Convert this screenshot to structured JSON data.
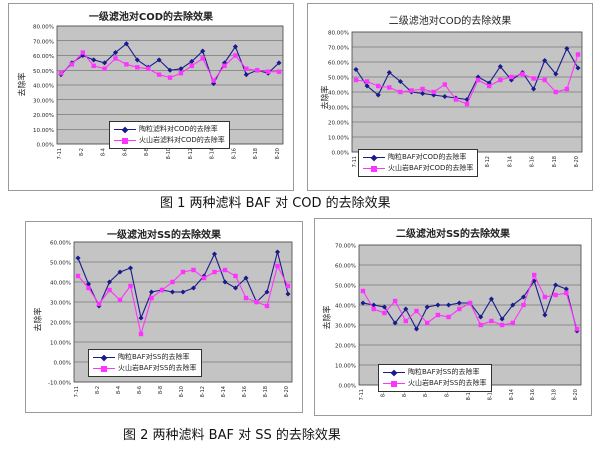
{
  "colors": {
    "series1": "#1a1a8c",
    "series2": "#ff33ff",
    "plot_bg": "#c4c4c4",
    "grid": "#555555"
  },
  "chart_data": [
    {
      "type": "line",
      "title": "一级滤池对COD的去除效果",
      "ylabel": "去除率",
      "xlabel": "",
      "ylim": [
        0,
        80
      ],
      "ytick_values": [
        0,
        10,
        20,
        30,
        40,
        50,
        60,
        70,
        80
      ],
      "ytick_labels": [
        "0.00%",
        "10.00%",
        "20.00%",
        "30.00%",
        "40.00%",
        "50.00%",
        "60.00%",
        "70.00%",
        "80.00%"
      ],
      "xticks": [
        "7-11",
        "",
        "8-2",
        "",
        "8-4",
        "",
        "8-6",
        "",
        "8-8",
        "",
        "8-10",
        "",
        "8-12",
        "",
        "8-14",
        "",
        "8-16",
        "",
        "8-18",
        "",
        "8-20"
      ],
      "legend": "lower-right",
      "series": [
        {
          "name": "陶粒滤料对COD的去除率",
          "values": [
            47,
            55,
            60,
            57,
            55,
            62,
            68,
            57,
            52,
            57,
            50,
            51,
            56,
            63,
            41,
            55,
            66,
            47,
            50,
            48,
            55
          ]
        },
        {
          "name": "火山岩滤料对COD的去除率",
          "values": [
            48,
            54,
            62,
            53,
            51,
            58,
            54,
            52,
            51,
            47,
            45,
            48,
            53,
            58,
            43,
            53,
            60,
            51,
            50,
            49,
            49
          ]
        }
      ]
    },
    {
      "type": "line",
      "title": "二级滤池对COD的去除效果",
      "ylabel": "去除率",
      "xlabel": "",
      "ylim": [
        0,
        80
      ],
      "ytick_values": [
        0,
        10,
        20,
        30,
        40,
        50,
        60,
        70,
        80
      ],
      "ytick_labels": [
        "0.00%",
        "10.00%",
        "20.00%",
        "30.00%",
        "40.00%",
        "50.00%",
        "60.00%",
        "70.00%",
        "80.00%"
      ],
      "xticks": [
        "7-11",
        "",
        "8-2",
        "",
        "8-4",
        "",
        "8-6",
        "",
        "8-8",
        "",
        "8-10",
        "",
        "8-12",
        "",
        "8-14",
        "",
        "8-16",
        "",
        "8-18",
        "",
        "8-20"
      ],
      "legend": "lower-left",
      "series": [
        {
          "name": "陶粒BAF对COD的去除率",
          "values": [
            55,
            44,
            38,
            53,
            47,
            40,
            39,
            38,
            37,
            36,
            35,
            50,
            46,
            57,
            48,
            53,
            42,
            61,
            52,
            69,
            56
          ]
        },
        {
          "name": "火山岩BAF对COD的去除率",
          "values": [
            48,
            47,
            44,
            43,
            40,
            41,
            42,
            40,
            45,
            35,
            32,
            48,
            44,
            48,
            50,
            52,
            49,
            48,
            40,
            42,
            65
          ]
        }
      ]
    },
    {
      "type": "line",
      "title": "一级滤池对SS的去除效果",
      "ylabel": "去除率",
      "xlabel": "",
      "ylim": [
        -10,
        60
      ],
      "ytick_values": [
        -10,
        0,
        10,
        20,
        30,
        40,
        50,
        60
      ],
      "ytick_labels": [
        "-10.00%",
        "0.00%",
        "10.00%",
        "20.00%",
        "30.00%",
        "40.00%",
        "50.00%",
        "60.00%"
      ],
      "xticks": [
        "7-11",
        "",
        "8-2",
        "",
        "8-4",
        "",
        "8-6",
        "",
        "8-8",
        "",
        "8-10",
        "",
        "8-12",
        "",
        "8-14",
        "",
        "8-16",
        "",
        "8-18",
        "",
        "8-20"
      ],
      "legend": "bottom-left",
      "series": [
        {
          "name": "陶粒BAF对SS的去除率",
          "values": [
            52,
            39,
            28,
            40,
            45,
            47,
            22,
            35,
            36,
            35,
            35,
            37,
            43,
            54,
            40,
            37,
            42,
            30,
            35,
            55,
            34
          ]
        },
        {
          "name": "火山岩BAF对SS的去除率",
          "values": [
            43,
            37,
            29,
            36,
            31,
            38,
            14,
            32,
            36,
            40,
            45,
            46,
            42,
            45,
            46,
            43,
            32,
            30,
            28,
            48,
            38
          ]
        }
      ]
    },
    {
      "type": "line",
      "title": "二级滤池对SS的去除效果",
      "ylabel": "去除率",
      "xlabel": "",
      "ylim": [
        0,
        70
      ],
      "ytick_values": [
        0,
        10,
        20,
        30,
        40,
        50,
        60,
        70
      ],
      "ytick_labels": [
        "0.00%",
        "10.00%",
        "20.00%",
        "30.00%",
        "40.00%",
        "50.00%",
        "60.00%",
        "70.00%"
      ],
      "xticks": [
        "7-11",
        "",
        "8-2",
        "",
        "8-4",
        "",
        "8-6",
        "",
        "8-8",
        "",
        "8-10",
        "",
        "8-12",
        "",
        "8-14",
        "",
        "8-16",
        "",
        "8-18",
        "",
        "8-20"
      ],
      "legend": "bottom-left",
      "series": [
        {
          "name": "陶粒BAF对SS的去除率",
          "values": [
            41,
            40,
            39,
            31,
            38,
            28,
            39,
            40,
            40,
            41,
            41,
            34,
            43,
            33,
            40,
            44,
            52,
            35,
            50,
            48,
            27
          ]
        },
        {
          "name": "火山岩BAF对SS的去除率",
          "values": [
            47,
            38,
            36,
            42,
            32,
            37,
            31,
            35,
            34,
            38,
            41,
            30,
            32,
            30,
            31,
            40,
            55,
            44,
            45,
            46,
            28
          ]
        }
      ]
    }
  ],
  "captions": {
    "fig1": "图 1 两种滤料 BAF 对 COD 的去除效果",
    "fig2": "图 2 两种滤料 BAF 对 SS 的去除效果"
  }
}
